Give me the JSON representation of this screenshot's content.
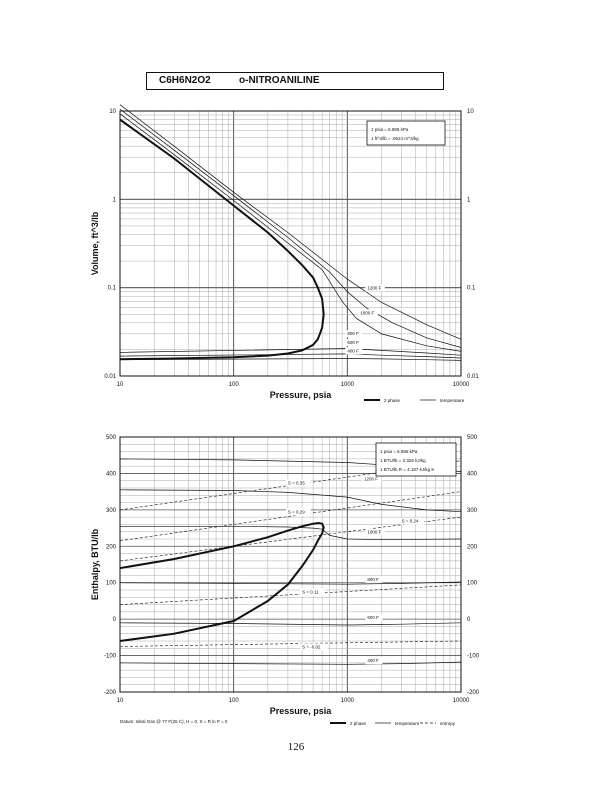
{
  "header": {
    "formula": "C6H6N2O2",
    "name": "o-NITROANILINE"
  },
  "page_number": "126",
  "chart_data": [
    {
      "type": "line",
      "xlabel": "Pressure,  psia",
      "ylabel": "Volume,  ft^3/lb",
      "xscale": "log",
      "yscale": "log",
      "xlim": [
        10,
        10000
      ],
      "ylim": [
        0.01,
        10
      ],
      "grid": true,
      "x_ticks": [
        "10",
        "100",
        "1000",
        "10000"
      ],
      "y_ticks": [
        "0.01",
        "0.1",
        "1",
        "10"
      ],
      "conversion_box": [
        "1 psia = 6.895 kPa",
        "1 ft^3/lb = .0624 m^3/kg"
      ],
      "legend": [
        "2 phase",
        "temperature"
      ],
      "series": [
        {
          "kind": "phase",
          "x": [
            10,
            30,
            100,
            200,
            300,
            400,
            500,
            550,
            600,
            620,
            600,
            550,
            500,
            400,
            300,
            200,
            100,
            30,
            10
          ],
          "y": [
            0.0155,
            0.0158,
            0.0163,
            0.017,
            0.018,
            0.0195,
            0.0225,
            0.026,
            0.035,
            0.05,
            0.075,
            0.1,
            0.13,
            0.18,
            0.26,
            0.42,
            0.85,
            2.9,
            8.0
          ]
        },
        {
          "kind": "temperature",
          "name": "400 F",
          "x": [
            10,
            1000,
            2000,
            5000,
            10000
          ],
          "y": [
            0.0153,
            0.0158,
            0.0156,
            0.0153,
            0.015
          ]
        },
        {
          "kind": "temperature",
          "name": "600 F",
          "x": [
            10,
            1000,
            2000,
            5000,
            10000
          ],
          "y": [
            0.0168,
            0.0178,
            0.0172,
            0.0166,
            0.016
          ]
        },
        {
          "kind": "temperature",
          "name": "800 F",
          "x": [
            10,
            1000,
            2000,
            5000,
            10000
          ],
          "y": [
            0.0185,
            0.0205,
            0.0195,
            0.0182,
            0.0172
          ]
        },
        {
          "kind": "temperature",
          "name": "1000 F",
          "x": [
            10,
            30,
            100,
            300,
            600,
            900,
            1200,
            2000,
            5000,
            10000
          ],
          "y": [
            9.3,
            3.2,
            0.97,
            0.32,
            0.16,
            0.07,
            0.045,
            0.03,
            0.022,
            0.019
          ]
        },
        {
          "kind": "temperature",
          "name": "1200 F",
          "x": [
            10,
            30,
            100,
            300,
            700,
            1000,
            1500,
            2500,
            5000,
            10000
          ],
          "y": [
            10.5,
            3.6,
            1.1,
            0.37,
            0.15,
            0.09,
            0.058,
            0.04,
            0.027,
            0.021
          ]
        },
        {
          "kind": "temperature",
          "name": "",
          "x": [
            10,
            30,
            100,
            300,
            1000,
            2000,
            5000,
            10000
          ],
          "y": [
            11.8,
            4.0,
            1.2,
            0.42,
            0.125,
            0.068,
            0.038,
            0.026
          ]
        }
      ],
      "labels": [
        {
          "text": "1200 F",
          "x": 1500,
          "y": 0.095
        },
        {
          "text": "1000 F",
          "x": 1300,
          "y": 0.05
        },
        {
          "text": "800 F",
          "x": 1000,
          "y": 0.029
        },
        {
          "text": "600 F",
          "x": 1000,
          "y": 0.023
        },
        {
          "text": "400 F",
          "x": 1000,
          "y": 0.0185
        }
      ]
    },
    {
      "type": "line",
      "xlabel": "Pressure,  psia",
      "ylabel": "Enthalpy,  BTU/lb",
      "xscale": "log",
      "xlim": [
        10,
        10000
      ],
      "ylim": [
        -200,
        500
      ],
      "grid": true,
      "x_ticks": [
        "10",
        "100",
        "1000",
        "10000"
      ],
      "y_ticks": [
        "-200",
        "-100",
        "0",
        "100",
        "200",
        "300",
        "400",
        "500"
      ],
      "y_ticks_right": [
        "-200",
        "-100",
        "0",
        "100",
        "200",
        "300",
        "400",
        "500"
      ],
      "conversion_box": [
        "1 psia = 6.895 kPa",
        "1 BTU/lb = 2.326 kJ/kg",
        "1 BTU/lb R = 4.187 kJ/kg K"
      ],
      "footnote": "Datum: Ideal Gas @ 77 F(25 C),  H = 0,  S = R ln P = 0",
      "legend": [
        "2 phase",
        "temperature",
        "entropy"
      ],
      "series": [
        {
          "kind": "phase",
          "x": [
            10,
            30,
            100,
            200,
            300,
            400,
            500,
            560,
            600,
            620,
            600,
            550,
            500,
            400,
            300,
            200,
            100,
            30,
            10
          ],
          "y": [
            140,
            165,
            200,
            225,
            243,
            255,
            262,
            264,
            262,
            252,
            235,
            215,
            190,
            145,
            95,
            50,
            -5,
            -40,
            -60
          ]
        },
        {
          "kind": "temperature",
          "name": "400 F",
          "x": [
            10,
            100,
            1000,
            3000,
            10000
          ],
          "y": [
            -120,
            -122,
            -124,
            -122,
            -118
          ]
        },
        {
          "kind": "temperature",
          "name": "600 F",
          "x": [
            10,
            100,
            1000,
            3000,
            10000
          ],
          "y": [
            -10,
            -12,
            -16,
            -14,
            -10
          ]
        },
        {
          "kind": "temperature",
          "name": "800 F",
          "x": [
            10,
            100,
            1000,
            3000,
            10000
          ],
          "y": [
            100,
            98,
            96,
            98,
            102
          ]
        },
        {
          "kind": "temperature",
          "name": "1000 F",
          "x": [
            10,
            100,
            300,
            500,
            600,
            700,
            1000,
            2000,
            10000
          ],
          "y": [
            255,
            255,
            253,
            250,
            247,
            230,
            220,
            218,
            220
          ]
        },
        {
          "kind": "temperature",
          "name": "1200 F",
          "x": [
            10,
            100,
            300,
            1000,
            2000,
            5000,
            10000
          ],
          "y": [
            355,
            353,
            348,
            335,
            315,
            300,
            295
          ]
        },
        {
          "kind": "temperature",
          "name": "",
          "x": [
            10,
            100,
            1000,
            3000,
            10000
          ],
          "y": [
            440,
            437,
            430,
            420,
            405
          ]
        },
        {
          "kind": "entropy",
          "name": "S = 0.35",
          "x": [
            10,
            100,
            1000,
            10000
          ],
          "y": [
            300,
            345,
            390,
            435
          ]
        },
        {
          "kind": "entropy",
          "name": "S = 0.29",
          "x": [
            10,
            100,
            1000,
            10000
          ],
          "y": [
            215,
            260,
            305,
            350
          ]
        },
        {
          "kind": "entropy",
          "name": "S = 0.24",
          "x": [
            10,
            100,
            1000,
            10000
          ],
          "y": [
            160,
            200,
            240,
            280
          ]
        },
        {
          "kind": "entropy",
          "name": "S = 0.11",
          "x": [
            10,
            100,
            1000,
            10000
          ],
          "y": [
            40,
            58,
            76,
            94
          ]
        },
        {
          "kind": "entropy",
          "name": "S = -0.02",
          "x": [
            10,
            100,
            1000,
            10000
          ],
          "y": [
            -75,
            -70,
            -65,
            -60
          ]
        }
      ],
      "labels": [
        {
          "text": "S = 0.35",
          "x": 300,
          "y": 370
        },
        {
          "text": "S = 0.29",
          "x": 300,
          "y": 290
        },
        {
          "text": "S = 0.24",
          "x": 3000,
          "y": 265
        },
        {
          "text": "S = 0.11",
          "x": 400,
          "y": 70
        },
        {
          "text": "S = -0.02",
          "x": 400,
          "y": -80
        },
        {
          "text": "1200 F",
          "x": 1400,
          "y": 380
        },
        {
          "text": "1000 F",
          "x": 1500,
          "y": 235
        },
        {
          "text": "800 F",
          "x": 1500,
          "y": 105
        },
        {
          "text": "600 F",
          "x": 1500,
          "y": 0
        },
        {
          "text": "400 F",
          "x": 1500,
          "y": -118
        }
      ]
    }
  ]
}
